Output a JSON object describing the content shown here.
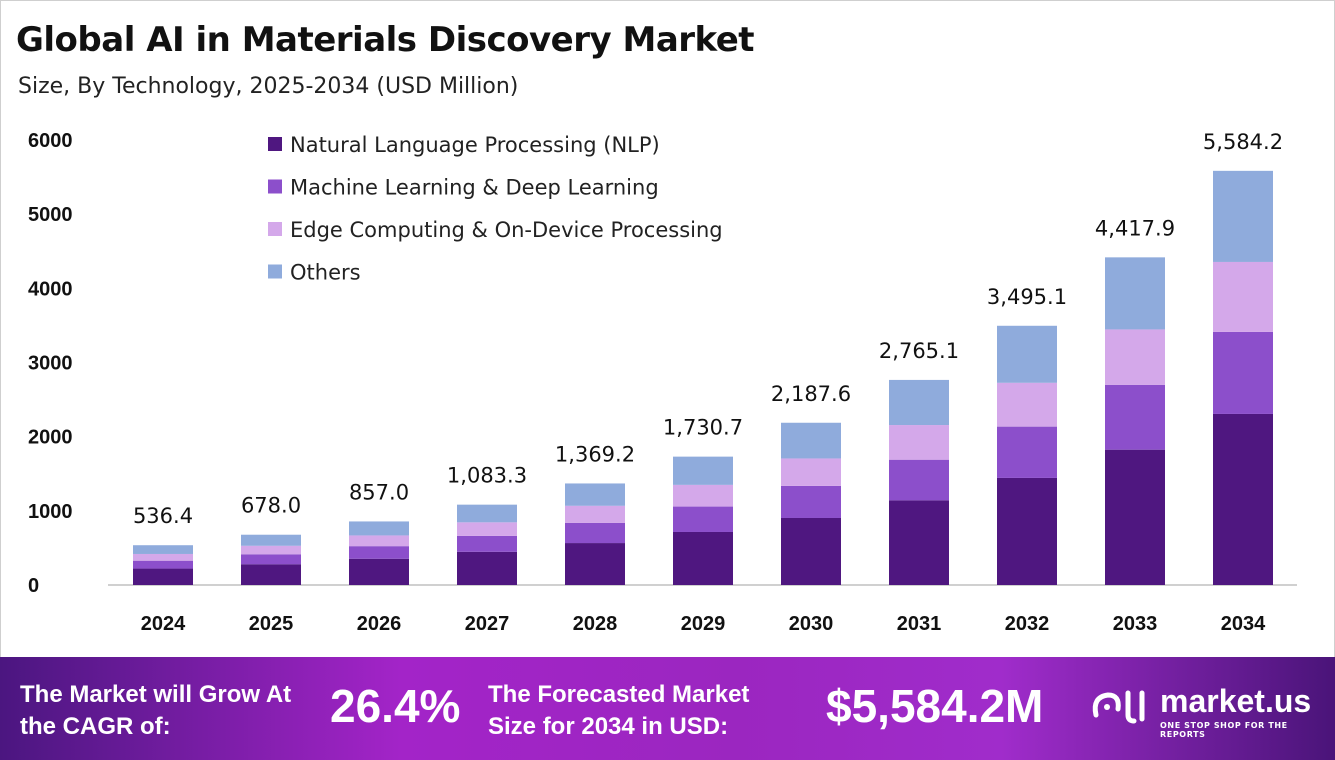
{
  "chart_data": {
    "type": "bar",
    "stacked": true,
    "title": "Global AI in Materials Discovery Market",
    "subtitle": "Size, By Technology, 2025-2034 (USD Million)",
    "categories": [
      "2024",
      "2025",
      "2026",
      "2027",
      "2028",
      "2029",
      "2030",
      "2031",
      "2032",
      "2033",
      "2034"
    ],
    "series": [
      {
        "name": "Natural Language Processing (NLP)",
        "color": "#4f1780",
        "values": [
          221.5,
          280.0,
          353.9,
          447.4,
          565.5,
          714.8,
          903.5,
          1142.0,
          1443.5,
          1824.6,
          2306.3
        ]
      },
      {
        "name": "Machine Learning & Deep Learning",
        "color": "#8c4fcb",
        "values": [
          106.2,
          134.2,
          169.7,
          214.5,
          271.1,
          342.7,
          433.1,
          547.5,
          692.0,
          874.7,
          1105.7
        ]
      },
      {
        "name": "Edge Computing & On-Device Processing",
        "color": "#d4a8ea",
        "values": [
          90.7,
          114.6,
          144.8,
          183.1,
          231.4,
          292.5,
          369.7,
          467.3,
          590.7,
          746.6,
          943.7
        ]
      },
      {
        "name": "Others",
        "color": "#8fabdc",
        "values": [
          118.0,
          149.2,
          188.6,
          238.3,
          301.2,
          380.7,
          481.3,
          608.3,
          768.9,
          971.9,
          1228.5
        ]
      }
    ],
    "totals": [
      "536.4",
      "678.0",
      "857.0",
      "1,083.3",
      "1,369.2",
      "1,730.7",
      "2,187.6",
      "2,765.1",
      "3,495.1",
      "4,417.9",
      "5,584.2"
    ],
    "yticks": [
      "0",
      "1000",
      "2000",
      "3000",
      "4000",
      "5000",
      "6000"
    ],
    "ylim": [
      0,
      6000
    ],
    "grid": false,
    "legend_placement": "top-left"
  },
  "footer": {
    "cagr_label": "The Market will Grow At the CAGR of:",
    "cagr_value": "26.4%",
    "forecast_label": "The Forecasted Market Size for 2034 in USD:",
    "forecast_value": "$5,584.2M",
    "logo_name": "market.us",
    "logo_tagline": "ONE STOP SHOP FOR THE REPORTS"
  }
}
